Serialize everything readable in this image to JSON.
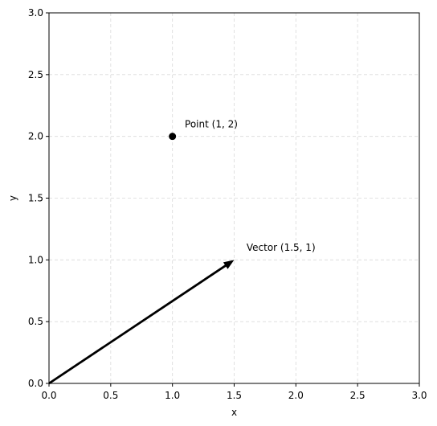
{
  "chart_data": {
    "type": "scatter",
    "xlabel": "x",
    "ylabel": "y",
    "xlim": [
      0,
      3
    ],
    "ylim": [
      0,
      3
    ],
    "xticks": [
      0,
      0.5,
      1,
      1.5,
      2,
      2.5,
      3
    ],
    "yticks": [
      0,
      0.5,
      1,
      1.5,
      2,
      2.5,
      3
    ],
    "xtick_labels": [
      "0.0",
      "0.5",
      "1.0",
      "1.5",
      "2.0",
      "2.5",
      "3.0"
    ],
    "ytick_labels": [
      "0.0",
      "0.5",
      "1.0",
      "1.5",
      "2.0",
      "2.5",
      "3.0"
    ],
    "grid": true,
    "points": [
      {
        "x": 1,
        "y": 2,
        "label": "Point (1, 2)",
        "color": "#000000"
      }
    ],
    "vectors": [
      {
        "x0": 0,
        "y0": 0,
        "x1": 1.5,
        "y1": 1,
        "label": "Vector (1.5, 1)",
        "color": "#000000"
      }
    ],
    "annotations": [
      {
        "text": "Point (1, 2)",
        "x": 1.1,
        "y": 2.1
      },
      {
        "text": "Vector (1.5, 1)",
        "x": 1.6,
        "y": 1.1
      }
    ]
  }
}
